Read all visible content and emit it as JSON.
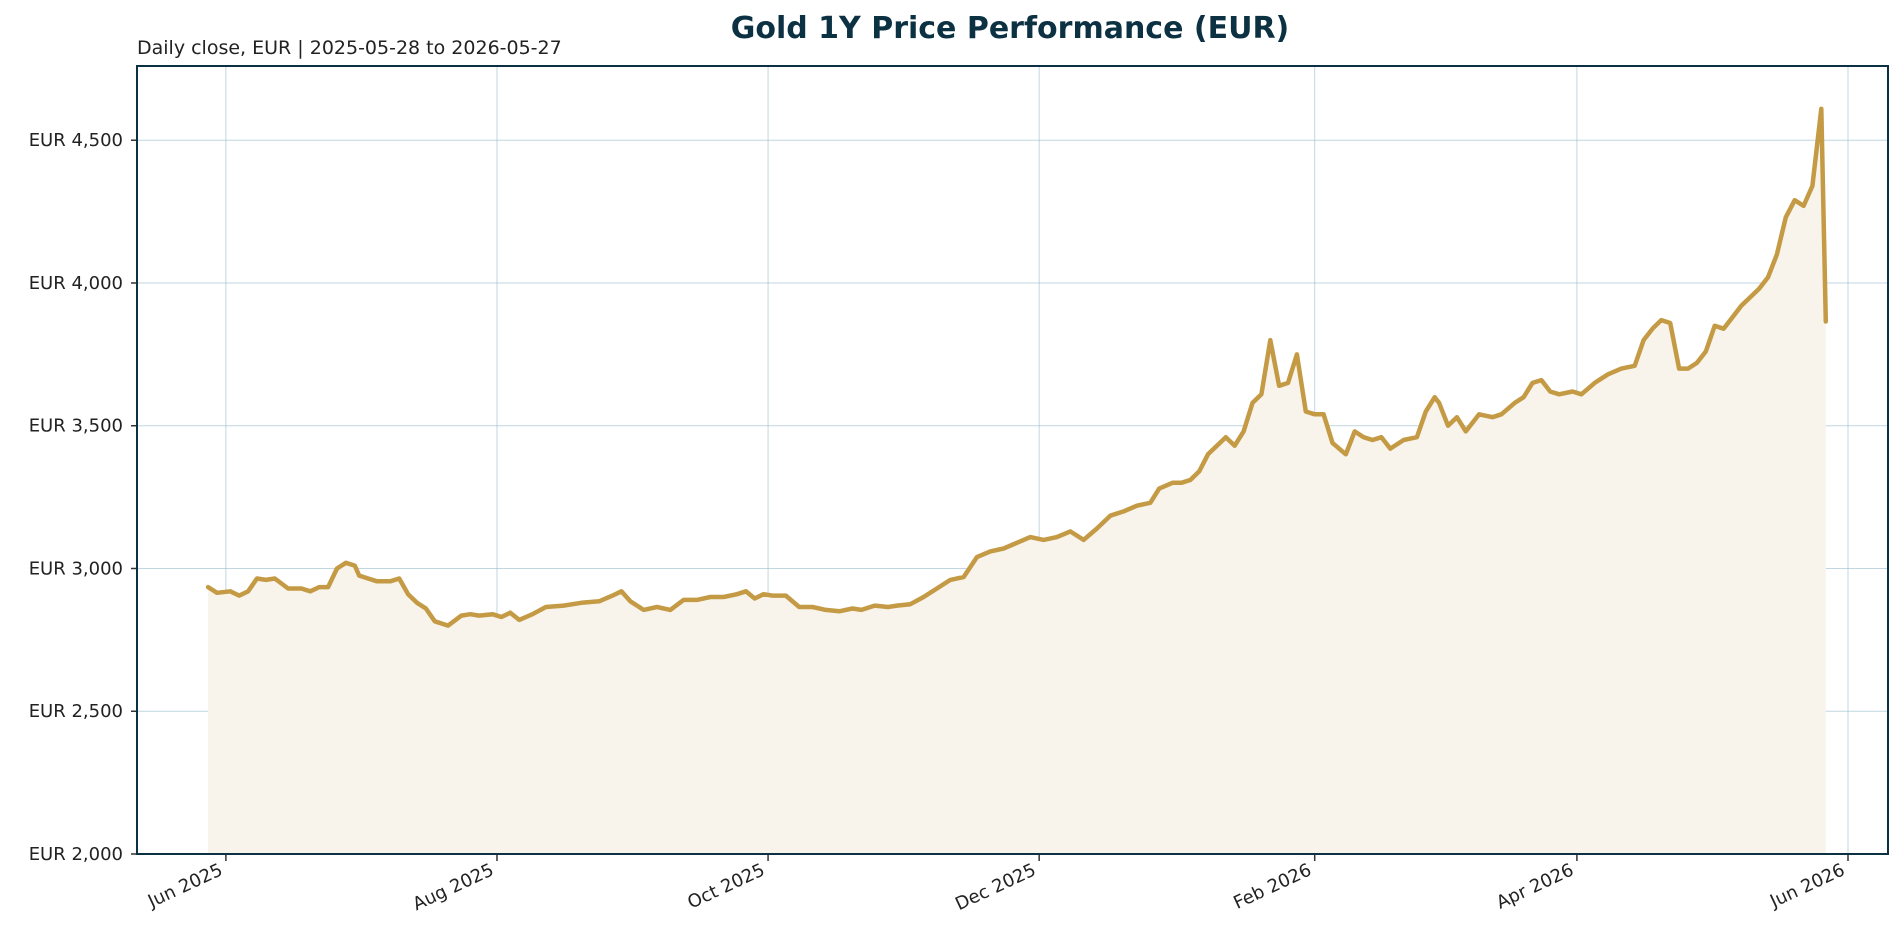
{
  "chart_data": {
    "type": "line",
    "title": "Gold 1Y Price Performance (EUR)",
    "subtitle": "Daily close, EUR | 2025-05-28 to 2026-05-27",
    "xlabel": "",
    "ylabel": "",
    "x_range": [
      "2025-05-12",
      "2026-06-10"
    ],
    "ylim": [
      2000,
      4760
    ],
    "yticks": [
      2000,
      2500,
      3000,
      3500,
      4000,
      4500
    ],
    "ytick_labels": [
      "EUR 2,000",
      "EUR 2,500",
      "EUR 3,000",
      "EUR 3,500",
      "EUR 4,000",
      "EUR 4,500"
    ],
    "xticks": [
      "2025-06-01",
      "2025-08-01",
      "2025-10-01",
      "2025-12-01",
      "2026-02-01",
      "2026-04-01",
      "2026-06-01"
    ],
    "xtick_labels": [
      "Jun 2025",
      "Aug 2025",
      "Oct 2025",
      "Dec 2025",
      "Feb 2026",
      "Apr 2026",
      "Jun 2026"
    ],
    "grid": true,
    "area_fill": true,
    "series": [
      {
        "line_color": "#c49a45",
        "fill_color": "#f8f4ec",
        "points": [
          [
            "2025-05-28",
            2935
          ],
          [
            "2025-05-30",
            2915
          ],
          [
            "2025-06-02",
            2920
          ],
          [
            "2025-06-04",
            2905
          ],
          [
            "2025-06-06",
            2920
          ],
          [
            "2025-06-08",
            2965
          ],
          [
            "2025-06-10",
            2960
          ],
          [
            "2025-06-12",
            2965
          ],
          [
            "2025-06-15",
            2930
          ],
          [
            "2025-06-18",
            2930
          ],
          [
            "2025-06-20",
            2920
          ],
          [
            "2025-06-22",
            2935
          ],
          [
            "2025-06-24",
            2935
          ],
          [
            "2025-06-26",
            3000
          ],
          [
            "2025-06-28",
            3020
          ],
          [
            "2025-06-30",
            3010
          ],
          [
            "2025-07-01",
            2975
          ],
          [
            "2025-07-03",
            2965
          ],
          [
            "2025-07-05",
            2955
          ],
          [
            "2025-07-08",
            2955
          ],
          [
            "2025-07-10",
            2965
          ],
          [
            "2025-07-12",
            2910
          ],
          [
            "2025-07-14",
            2880
          ],
          [
            "2025-07-16",
            2860
          ],
          [
            "2025-07-18",
            2815
          ],
          [
            "2025-07-21",
            2800
          ],
          [
            "2025-07-24",
            2835
          ],
          [
            "2025-07-26",
            2840
          ],
          [
            "2025-07-28",
            2835
          ],
          [
            "2025-07-31",
            2840
          ],
          [
            "2025-08-02",
            2830
          ],
          [
            "2025-08-04",
            2845
          ],
          [
            "2025-08-06",
            2820
          ],
          [
            "2025-08-09",
            2840
          ],
          [
            "2025-08-12",
            2865
          ],
          [
            "2025-08-16",
            2870
          ],
          [
            "2025-08-20",
            2880
          ],
          [
            "2025-08-24",
            2885
          ],
          [
            "2025-08-27",
            2905
          ],
          [
            "2025-08-29",
            2920
          ],
          [
            "2025-08-31",
            2885
          ],
          [
            "2025-09-03",
            2855
          ],
          [
            "2025-09-06",
            2865
          ],
          [
            "2025-09-09",
            2855
          ],
          [
            "2025-09-12",
            2890
          ],
          [
            "2025-09-15",
            2890
          ],
          [
            "2025-09-18",
            2900
          ],
          [
            "2025-09-21",
            2900
          ],
          [
            "2025-09-24",
            2910
          ],
          [
            "2025-09-26",
            2920
          ],
          [
            "2025-09-28",
            2895
          ],
          [
            "2025-09-30",
            2910
          ],
          [
            "2025-10-02",
            2905
          ],
          [
            "2025-10-05",
            2905
          ],
          [
            "2025-10-08",
            2865
          ],
          [
            "2025-10-11",
            2865
          ],
          [
            "2025-10-14",
            2855
          ],
          [
            "2025-10-17",
            2850
          ],
          [
            "2025-10-20",
            2860
          ],
          [
            "2025-10-22",
            2855
          ],
          [
            "2025-10-25",
            2870
          ],
          [
            "2025-10-28",
            2865
          ],
          [
            "2025-10-30",
            2870
          ],
          [
            "2025-11-02",
            2875
          ],
          [
            "2025-11-05",
            2900
          ],
          [
            "2025-11-08",
            2930
          ],
          [
            "2025-11-11",
            2960
          ],
          [
            "2025-11-14",
            2970
          ],
          [
            "2025-11-17",
            3040
          ],
          [
            "2025-11-20",
            3060
          ],
          [
            "2025-11-23",
            3070
          ],
          [
            "2025-11-26",
            3090
          ],
          [
            "2025-11-29",
            3110
          ],
          [
            "2025-12-02",
            3100
          ],
          [
            "2025-12-05",
            3110
          ],
          [
            "2025-12-08",
            3130
          ],
          [
            "2025-12-11",
            3100
          ],
          [
            "2025-12-14",
            3140
          ],
          [
            "2025-12-17",
            3185
          ],
          [
            "2025-12-20",
            3200
          ],
          [
            "2025-12-23",
            3220
          ],
          [
            "2025-12-26",
            3230
          ],
          [
            "2025-12-28",
            3280
          ],
          [
            "2025-12-31",
            3300
          ],
          [
            "2026-01-02",
            3300
          ],
          [
            "2026-01-04",
            3310
          ],
          [
            "2026-01-06",
            3340
          ],
          [
            "2026-01-08",
            3400
          ],
          [
            "2026-01-10",
            3430
          ],
          [
            "2026-01-12",
            3460
          ],
          [
            "2026-01-14",
            3430
          ],
          [
            "2026-01-16",
            3480
          ],
          [
            "2026-01-18",
            3580
          ],
          [
            "2026-01-20",
            3610
          ],
          [
            "2026-01-22",
            3800
          ],
          [
            "2026-01-24",
            3640
          ],
          [
            "2026-01-26",
            3650
          ],
          [
            "2026-01-28",
            3750
          ],
          [
            "2026-01-30",
            3550
          ],
          [
            "2026-02-01",
            3540
          ],
          [
            "2026-02-03",
            3540
          ],
          [
            "2026-02-05",
            3440
          ],
          [
            "2026-02-08",
            3400
          ],
          [
            "2026-02-10",
            3480
          ],
          [
            "2026-02-12",
            3460
          ],
          [
            "2026-02-14",
            3450
          ],
          [
            "2026-02-16",
            3460
          ],
          [
            "2026-02-18",
            3420
          ],
          [
            "2026-02-21",
            3450
          ],
          [
            "2026-02-24",
            3460
          ],
          [
            "2026-02-26",
            3550
          ],
          [
            "2026-02-28",
            3600
          ],
          [
            "2026-03-01",
            3580
          ],
          [
            "2026-03-03",
            3500
          ],
          [
            "2026-03-05",
            3530
          ],
          [
            "2026-03-07",
            3480
          ],
          [
            "2026-03-10",
            3540
          ],
          [
            "2026-03-13",
            3530
          ],
          [
            "2026-03-15",
            3540
          ],
          [
            "2026-03-18",
            3580
          ],
          [
            "2026-03-20",
            3600
          ],
          [
            "2026-03-22",
            3650
          ],
          [
            "2026-03-24",
            3660
          ],
          [
            "2026-03-26",
            3620
          ],
          [
            "2026-03-28",
            3610
          ],
          [
            "2026-03-31",
            3620
          ],
          [
            "2026-04-02",
            3610
          ],
          [
            "2026-04-05",
            3650
          ],
          [
            "2026-04-08",
            3680
          ],
          [
            "2026-04-11",
            3700
          ],
          [
            "2026-04-14",
            3710
          ],
          [
            "2026-04-16",
            3800
          ],
          [
            "2026-04-18",
            3840
          ],
          [
            "2026-04-20",
            3870
          ],
          [
            "2026-04-22",
            3860
          ],
          [
            "2026-04-24",
            3700
          ],
          [
            "2026-04-26",
            3700
          ],
          [
            "2026-04-28",
            3720
          ],
          [
            "2026-04-30",
            3760
          ],
          [
            "2026-05-02",
            3850
          ],
          [
            "2026-05-04",
            3840
          ],
          [
            "2026-05-06",
            3880
          ],
          [
            "2026-05-08",
            3920
          ],
          [
            "2026-05-10",
            3950
          ],
          [
            "2026-05-12",
            3980
          ],
          [
            "2026-05-14",
            4020
          ],
          [
            "2026-05-16",
            4100
          ],
          [
            "2026-05-18",
            4230
          ],
          [
            "2026-05-20",
            4290
          ],
          [
            "2026-05-22",
            4270
          ],
          [
            "2026-05-24",
            4340
          ],
          [
            "2026-05-26",
            4610
          ],
          [
            "2026-05-27",
            3865
          ]
        ]
      }
    ]
  }
}
